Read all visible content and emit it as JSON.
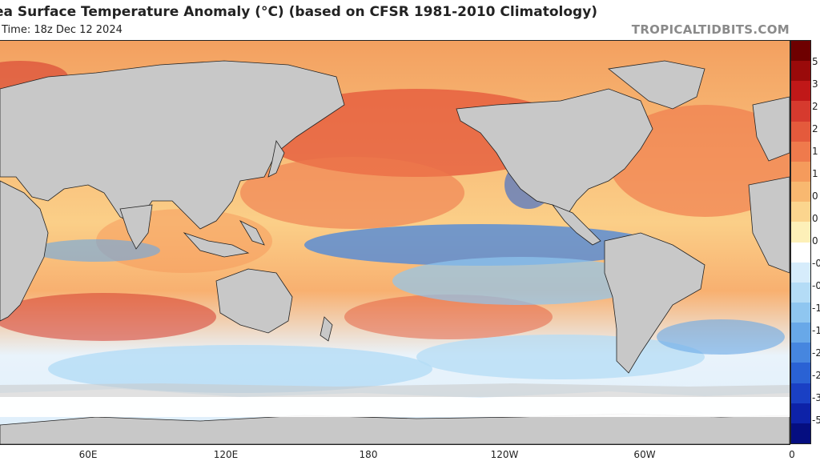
{
  "header": {
    "title": "ea Surface Temperature Anomaly (°C) (based on CFSR 1981-2010 Climatology)",
    "valid_time": "Time: 18z Dec 12 2024",
    "credit": "TROPICALTIDBITS.COM"
  },
  "longitude_labels": [
    "60E",
    "120E",
    "180",
    "120W",
    "60W",
    "0"
  ],
  "colorbar": {
    "labels": [
      "5",
      "3",
      "2",
      "2",
      "1",
      "1",
      "0",
      "0",
      "0",
      "-0",
      "-0",
      "-1",
      "-1",
      "-2",
      "-2",
      "-3",
      "-5"
    ],
    "colors": [
      "#6e0000",
      "#9a0a0a",
      "#c01818",
      "#d63a2e",
      "#e45a3c",
      "#ef7a4c",
      "#f59b5c",
      "#f8b870",
      "#fbd58e",
      "#fdf0b8",
      "#ffffff",
      "#d6ecfb",
      "#b4dcf6",
      "#8fc6f0",
      "#68a8e8",
      "#4686df",
      "#2a62d4",
      "#1a40c4",
      "#0d22a8",
      "#050e80"
    ]
  },
  "map": {
    "land_color": "#c8c8c8",
    "ice_color": "#ffffff",
    "warm_color": "#e85a3a",
    "cool_color": "#5a96e6",
    "ocean_neutral": "#fde6b0"
  }
}
